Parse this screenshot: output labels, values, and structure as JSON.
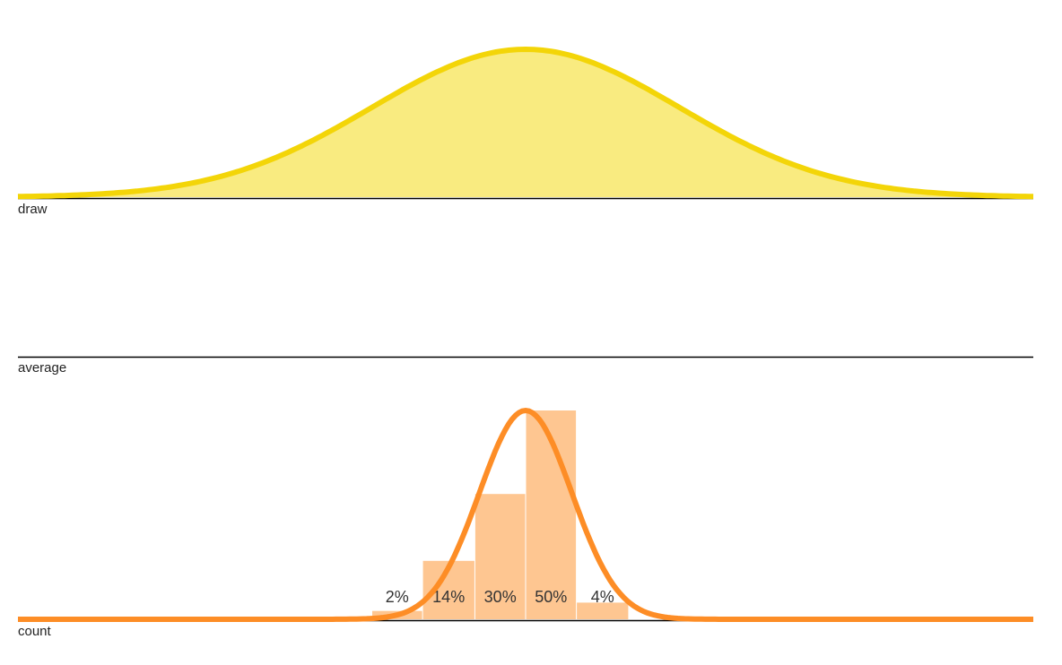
{
  "chart_data": [
    {
      "type": "area",
      "name_label": "draw",
      "colors": {
        "fill": "#f9eb80",
        "stroke": "#f3d508"
      },
      "distribution": {
        "kind": "normal",
        "mean": 0,
        "sd": 1.0
      },
      "xlim": [
        -3.3,
        3.3
      ]
    },
    {
      "type": "line",
      "name_label": "average",
      "values": []
    },
    {
      "type": "bar",
      "name_label": "count",
      "colors": {
        "bars": "#fec691",
        "curve": "#fd8d26"
      },
      "bins": [
        {
          "x0": -1.0,
          "x1": -0.67,
          "value": 2,
          "label": "2%"
        },
        {
          "x0": -0.67,
          "x1": -0.33,
          "value": 14,
          "label": "14%"
        },
        {
          "x0": -0.33,
          "x1": 0.0,
          "value": 30,
          "label": "30%"
        },
        {
          "x0": 0.0,
          "x1": 0.33,
          "value": 50,
          "label": "50%"
        },
        {
          "x0": 0.33,
          "x1": 0.67,
          "value": 4,
          "label": "4%"
        }
      ],
      "curve": {
        "kind": "normal",
        "mean": 0,
        "sd": 0.3
      },
      "xlim": [
        -3.3,
        3.3
      ]
    }
  ]
}
